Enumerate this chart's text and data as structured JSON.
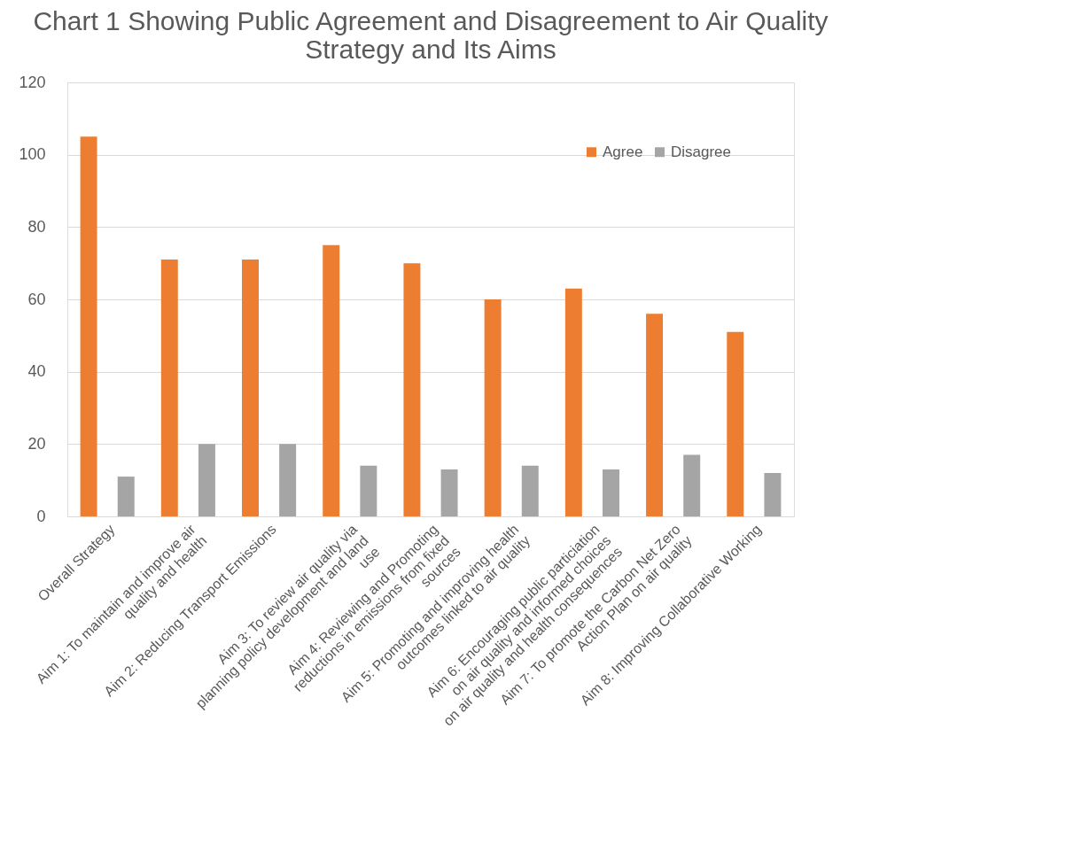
{
  "chart_data": {
    "type": "bar",
    "title": "Chart 1 Showing Public Agreement  and Disagreement to Air Quality Strategy and Its Aims",
    "categories": [
      "Overall Strategy",
      "Aim 1: To maintain and improve air quality and health",
      "Aim 2: Reducing Transport Emissions",
      "Aim 3: To  review air quality via planning policy development and land use",
      "Aim 4: Reviewing and Promoting reductions in emissions from fixed sources",
      "Aim 5: Promoting and improving health outcomes linked to air quality",
      "Aim 6: Encouraging public particiation on air quality  and informed choices on air quality and health consequences",
      "Aim 7: To promote the Carbon Net Zero Action Plan on air quality",
      "Aim 8: Improving Collaborative Working"
    ],
    "series": [
      {
        "name": "Agree",
        "color": "#ed7d31",
        "values": [
          105,
          71,
          71,
          75,
          70,
          60,
          63,
          56,
          51
        ]
      },
      {
        "name": "Disagree",
        "color": "#a5a5a5",
        "values": [
          11,
          20,
          20,
          14,
          13,
          14,
          13,
          17,
          12
        ]
      }
    ],
    "ylim": [
      0,
      120
    ],
    "yticks": [
      0,
      20,
      40,
      60,
      80,
      100,
      120
    ],
    "grid": "y",
    "legend": "top right"
  }
}
